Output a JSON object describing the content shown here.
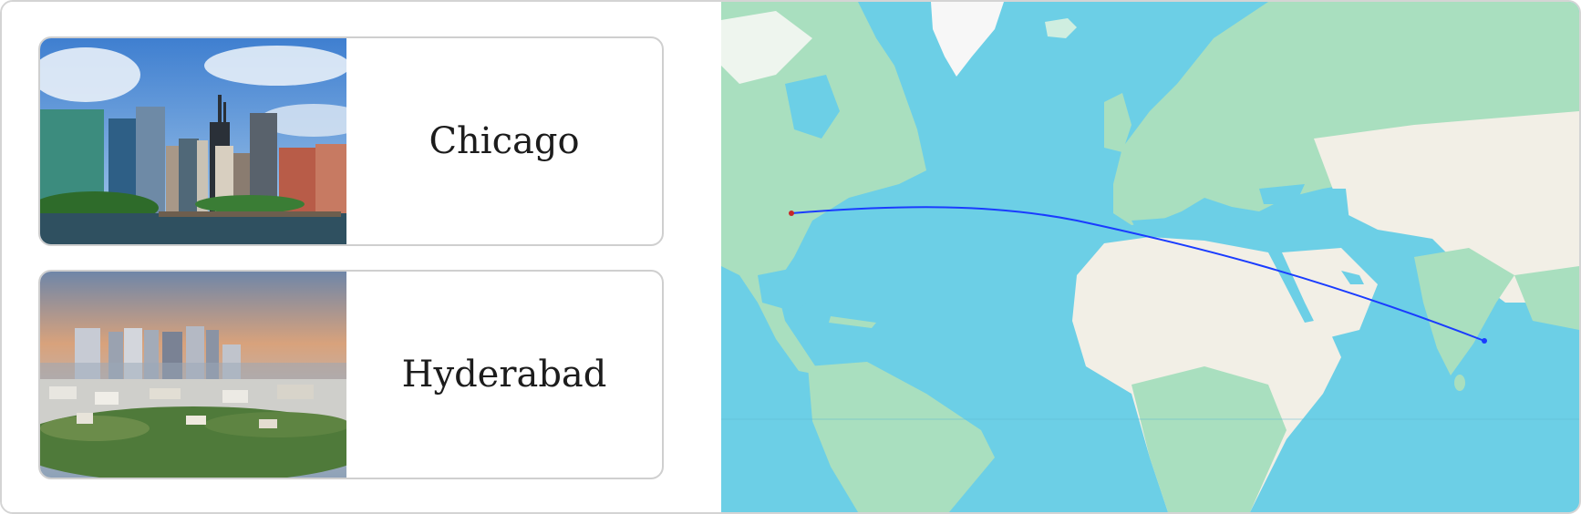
{
  "cities": [
    {
      "name": "Chicago",
      "photo": "chicago-skyline-photo"
    },
    {
      "name": "Hyderabad",
      "photo": "hyderabad-skyline-photo"
    }
  ],
  "map": {
    "route": {
      "color": "#1a3cff",
      "from": "Chicago",
      "to": "Hyderabad"
    },
    "colors": {
      "ocean": "#6ccfe6",
      "forest": "#a9dfbf",
      "desert": "#f2efe6",
      "ice": "#f7f7f7"
    }
  }
}
